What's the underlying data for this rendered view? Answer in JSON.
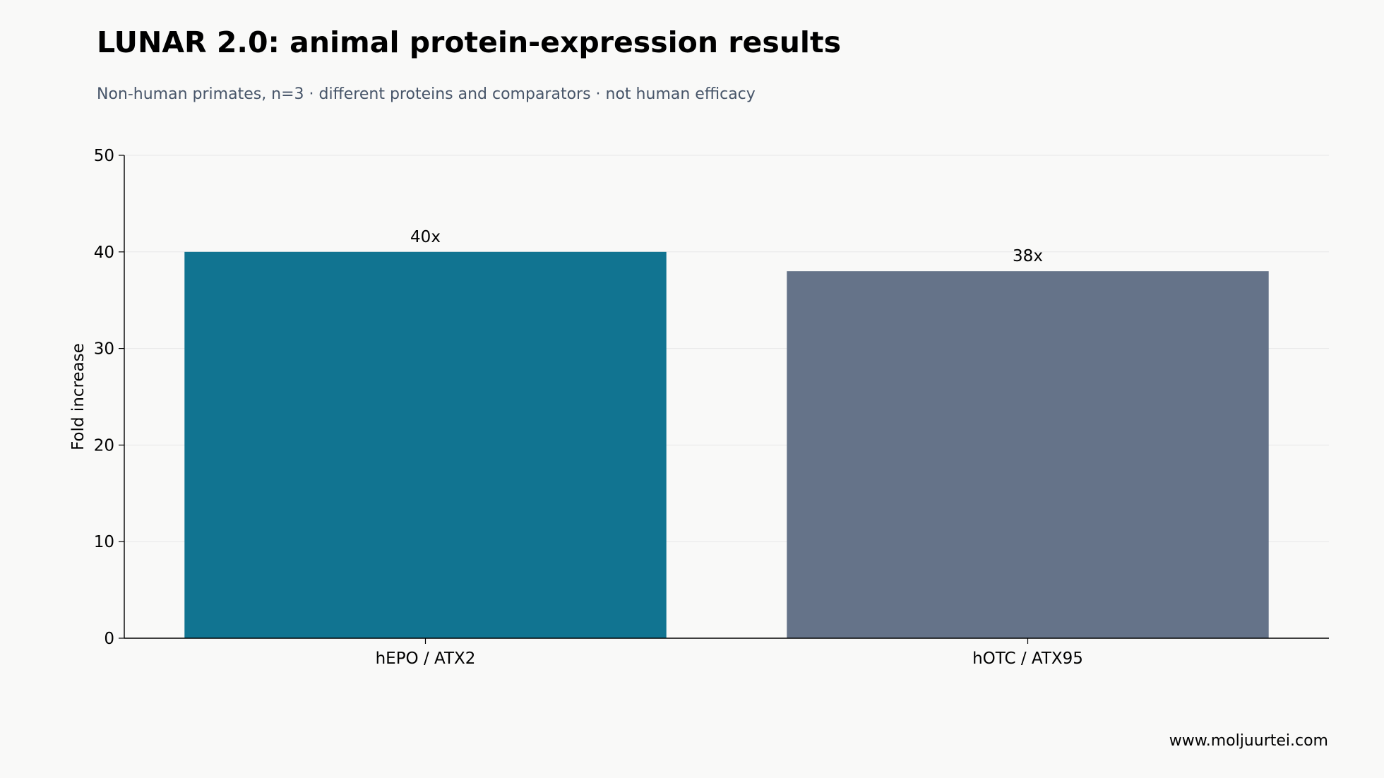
{
  "title": "LUNAR 2.0: animal protein-expression results",
  "subtitle": "Non-human primates, n=3 · different proteins and comparators · not human efficacy",
  "footer": "www.moljuurtei.com",
  "chart_data": {
    "type": "bar",
    "categories": [
      "hEPO / ATX2",
      "hOTC / ATX95"
    ],
    "values": [
      40,
      38
    ],
    "data_labels": [
      "40x",
      "38x"
    ],
    "colors": [
      "#117491",
      "#657389"
    ],
    "xlabel": "",
    "ylabel": "Fold increase",
    "ylim": [
      0,
      50
    ],
    "yticks": [
      0,
      10,
      20,
      30,
      40,
      50
    ],
    "grid": "horizontal",
    "legend": "none"
  }
}
